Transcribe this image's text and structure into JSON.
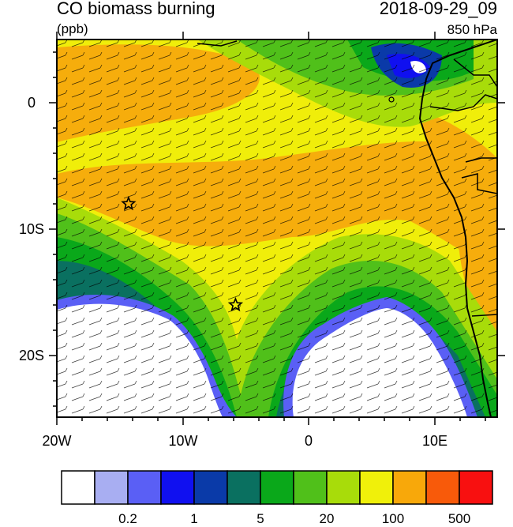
{
  "title": "CO biomass burning",
  "units": "(ppb)",
  "datetime": "2018-09-29_09",
  "level": "850 hPa",
  "axes": {
    "x_ticks": [
      "20W",
      "10W",
      "0",
      "10E"
    ],
    "y_ticks": [
      "0",
      "10S",
      "20S"
    ]
  },
  "colorbar": {
    "colors": [
      "#ffffff",
      "#a8aef2",
      "#5a5ff5",
      "#1010f0",
      "#0a3aa8",
      "#0a7060",
      "#0aa81a",
      "#50c01a",
      "#a8dc0a",
      "#f0f00a",
      "#f8a80a",
      "#f85a0a",
      "#f81010"
    ],
    "tick_labels": [
      "0.2",
      "1",
      "5",
      "20",
      "100",
      "500"
    ]
  },
  "markers": [
    {
      "name": "star-marker-north",
      "lon": -14.3,
      "lat": -8.0
    },
    {
      "name": "star-marker-south",
      "lon": -5.8,
      "lat": -16.0
    }
  ]
}
